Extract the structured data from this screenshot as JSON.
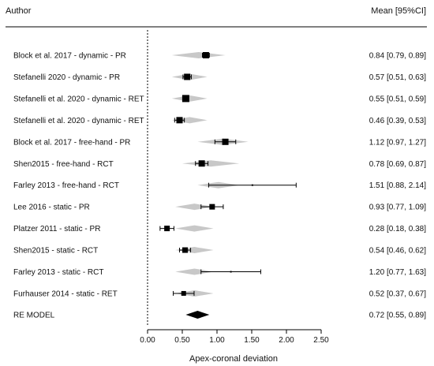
{
  "chart_data": {
    "type": "forest",
    "column_headers": {
      "left": "Author",
      "right": "Mean [95%CI]"
    },
    "xlabel": "Apex-coronal deviation",
    "xlim": [
      0,
      2.5
    ],
    "xticks": [
      "0.00",
      "0.50",
      "1.00",
      "1.50",
      "2.00",
      "2.50"
    ],
    "reference_line_x": 0,
    "studies": [
      {
        "label": "Block et al. 2017 - dynamic - PR",
        "mean": 0.84,
        "lo": 0.79,
        "hi": 0.89,
        "ci_text": "0.84 [0.79, 0.89]",
        "box": 8,
        "pred": [
          0.35,
          1.12
        ]
      },
      {
        "label": "Stefanelli 2020 - dynamic - PR",
        "mean": 0.57,
        "lo": 0.51,
        "hi": 0.63,
        "ci_text": "0.57 [0.51, 0.63]",
        "box": 8,
        "pred": [
          0.35,
          0.86
        ]
      },
      {
        "label": "Stefanelli et al. 2020 - dynamic - RET",
        "mean": 0.55,
        "lo": 0.51,
        "hi": 0.59,
        "ci_text": "0.55 [0.51, 0.59]",
        "box": 9,
        "pred": [
          0.35,
          0.86
        ]
      },
      {
        "label": "Stefanelli et al. 2020 - dynamic - RET",
        "mean": 0.46,
        "lo": 0.39,
        "hi": 0.53,
        "ci_text": "0.46 [0.39, 0.53]",
        "box": 8,
        "pred": [
          0.35,
          0.86
        ]
      },
      {
        "label": "Block et al. 2017 - free-hand - PR",
        "mean": 1.12,
        "lo": 0.97,
        "hi": 1.27,
        "ci_text": "1.12 [0.97, 1.27]",
        "box": 8,
        "pred": [
          0.72,
          1.45
        ]
      },
      {
        "label": "Shen2015 - free-hand - RCT",
        "mean": 0.78,
        "lo": 0.69,
        "hi": 0.87,
        "ci_text": "0.78 [0.69, 0.87]",
        "box": 8,
        "pred": [
          0.5,
          1.32
        ]
      },
      {
        "label": "Farley 2013 - free-hand - RCT",
        "mean": 1.51,
        "lo": 0.88,
        "hi": 2.14,
        "ci_text": "1.51 [0.88, 2.14]",
        "box": 2,
        "pred": [
          0.72,
          1.32
        ]
      },
      {
        "label": "Lee 2016 - static - PR",
        "mean": 0.93,
        "lo": 0.77,
        "hi": 1.09,
        "ci_text": "0.93 [0.77, 1.09]",
        "box": 7,
        "pred": [
          0.4,
          0.95
        ]
      },
      {
        "label": "Platzer 2011 - static - PR",
        "mean": 0.28,
        "lo": 0.18,
        "hi": 0.38,
        "ci_text": "0.28 [0.18, 0.38]",
        "box": 7,
        "pred": [
          0.4,
          0.95
        ]
      },
      {
        "label": "Shen2015 - static - RCT",
        "mean": 0.54,
        "lo": 0.46,
        "hi": 0.62,
        "ci_text": "0.54 [0.46, 0.62]",
        "box": 7,
        "pred": [
          0.4,
          0.95
        ]
      },
      {
        "label": "Farley 2013 - static - RCT",
        "mean": 1.2,
        "lo": 0.77,
        "hi": 1.63,
        "ci_text": "1.20 [0.77, 1.63]",
        "box": 2,
        "pred": [
          0.4,
          0.95
        ]
      },
      {
        "label": "Furhauser 2014 - static - RET",
        "mean": 0.52,
        "lo": 0.37,
        "hi": 0.67,
        "ci_text": "0.52 [0.37, 0.67]",
        "box": 6,
        "pred": [
          0.4,
          0.95
        ]
      }
    ],
    "summary": {
      "label": "RE MODEL",
      "mean": 0.72,
      "lo": 0.55,
      "hi": 0.89,
      "ci_text": "0.72 [0.55, 0.89]"
    },
    "colors": {
      "marker": "#000000",
      "prediction_diamond": "#c8c8c8",
      "axis": "#000000"
    }
  }
}
